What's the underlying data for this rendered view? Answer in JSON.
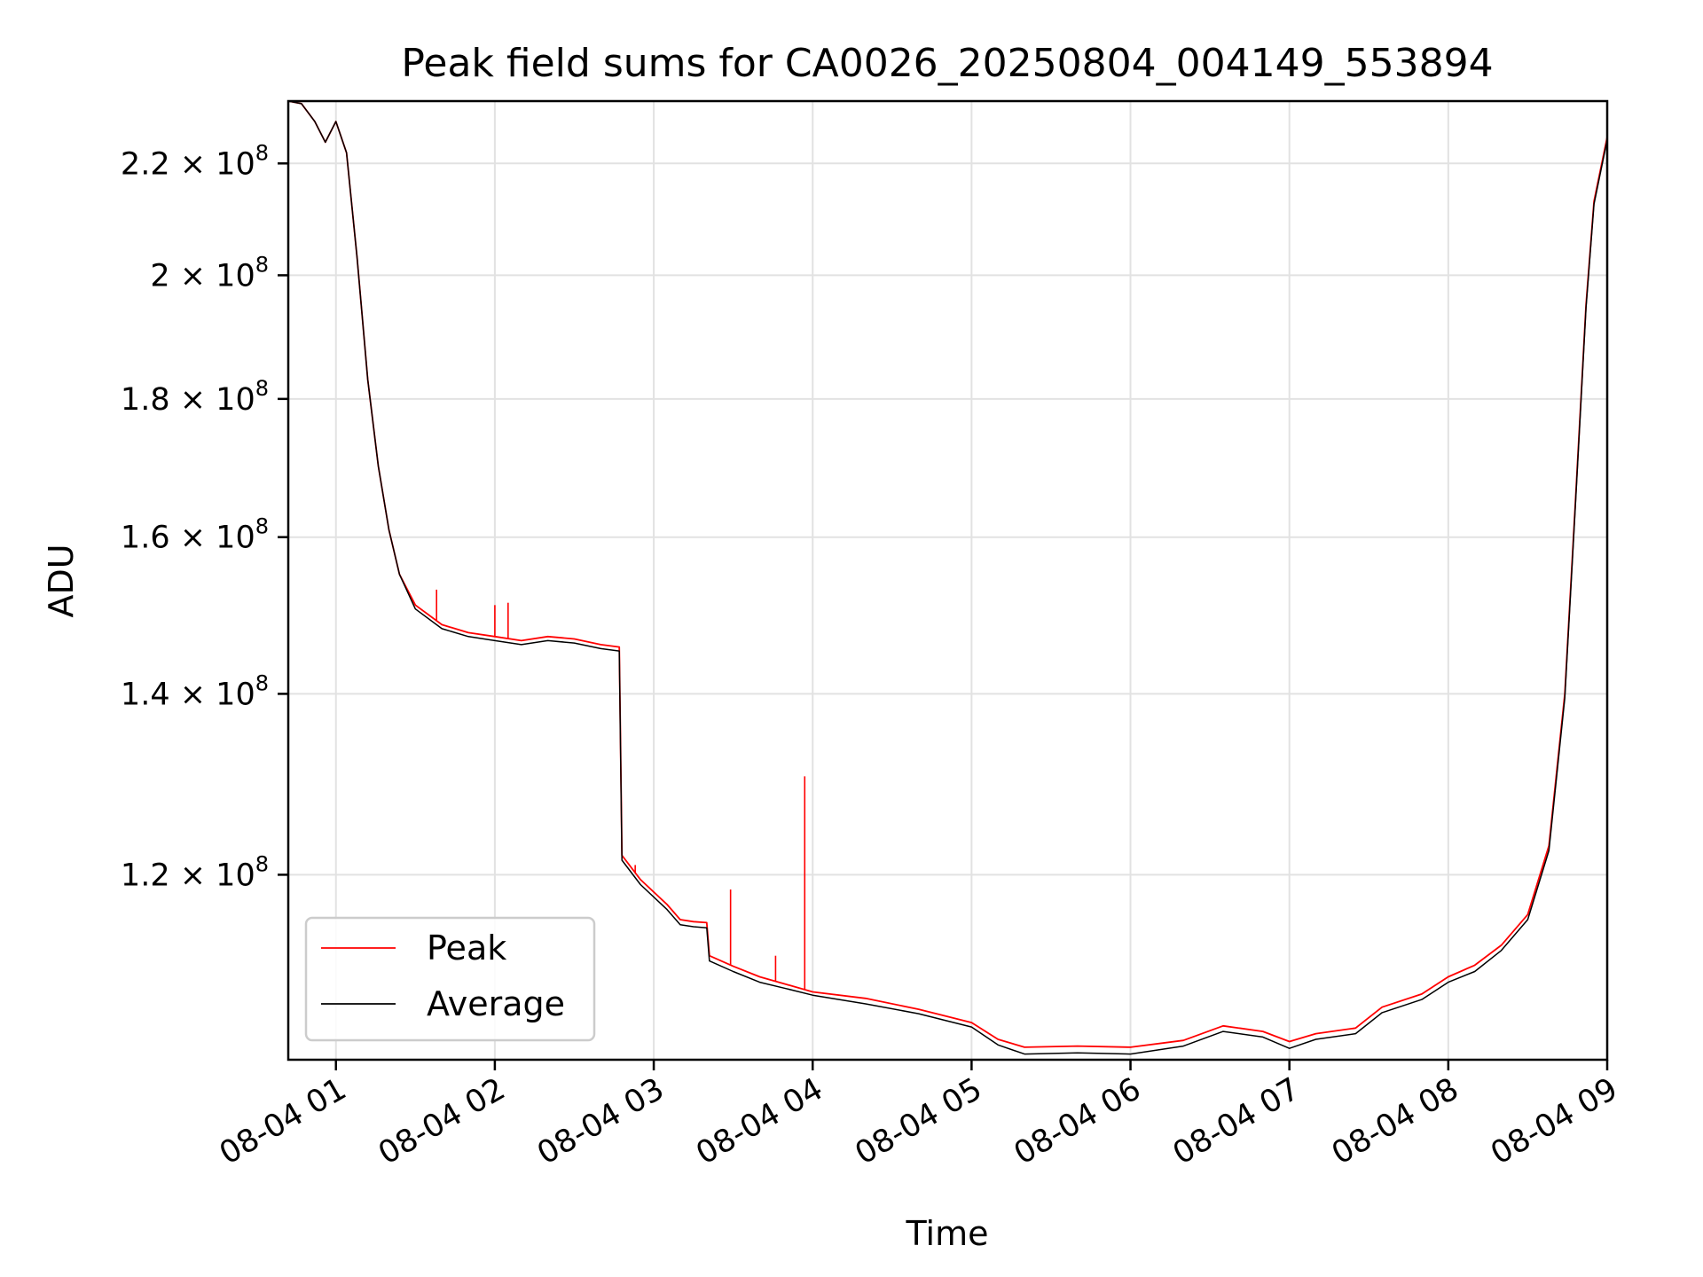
{
  "chart_data": {
    "type": "line",
    "title": "Peak field sums for CA0026_20250804_004149_553894",
    "xlabel": "Time",
    "ylabel": "ADU",
    "scale_y": "log",
    "grid": true,
    "legend_position": "lower-left",
    "xlim": [
      "2025-08-04 00:42",
      "2025-08-04 09:00"
    ],
    "ylim": [
      102500000,
      232000000
    ],
    "x_ticks": [
      {
        "value": "2025-08-04 01:00",
        "label": "08-04 01"
      },
      {
        "value": "2025-08-04 02:00",
        "label": "08-04 02"
      },
      {
        "value": "2025-08-04 03:00",
        "label": "08-04 03"
      },
      {
        "value": "2025-08-04 04:00",
        "label": "08-04 04"
      },
      {
        "value": "2025-08-04 05:00",
        "label": "08-04 05"
      },
      {
        "value": "2025-08-04 06:00",
        "label": "08-04 06"
      },
      {
        "value": "2025-08-04 07:00",
        "label": "08-04 07"
      },
      {
        "value": "2025-08-04 08:00",
        "label": "08-04 08"
      },
      {
        "value": "2025-08-04 09:00",
        "label": "08-04 09"
      }
    ],
    "y_ticks": [
      {
        "value": 120000000,
        "mantissa": "1.2",
        "exponent": "8"
      },
      {
        "value": 140000000,
        "mantissa": "1.4",
        "exponent": "8"
      },
      {
        "value": 160000000,
        "mantissa": "1.6",
        "exponent": "8"
      },
      {
        "value": 180000000,
        "mantissa": "1.8",
        "exponent": "8"
      },
      {
        "value": 200000000,
        "mantissa": "2",
        "exponent": "8"
      },
      {
        "value": 220000000,
        "mantissa": "2.2",
        "exponent": "8"
      }
    ],
    "series": [
      {
        "name": "Peak",
        "color": "#ff0000",
        "points": [
          [
            "2025-08-04 00:42",
            232000000
          ],
          [
            "2025-08-04 00:47",
            231500000
          ],
          [
            "2025-08-04 00:52",
            228000000
          ],
          [
            "2025-08-04 00:56",
            224000000
          ],
          [
            "2025-08-04 01:00",
            228000000
          ],
          [
            "2025-08-04 01:04",
            222000000
          ],
          [
            "2025-08-04 01:08",
            203000000
          ],
          [
            "2025-08-04 01:12",
            183000000
          ],
          [
            "2025-08-04 01:16",
            170000000
          ],
          [
            "2025-08-04 01:20",
            161000000
          ],
          [
            "2025-08-04 01:24",
            155000000
          ],
          [
            "2025-08-04 01:30",
            151000000
          ],
          [
            "2025-08-04 01:40",
            148500000
          ],
          [
            "2025-08-04 01:50",
            147500000
          ],
          [
            "2025-08-04 02:00",
            147000000
          ],
          [
            "2025-08-04 02:10",
            146500000
          ],
          [
            "2025-08-04 02:20",
            147000000
          ],
          [
            "2025-08-04 02:30",
            146700000
          ],
          [
            "2025-08-04 02:40",
            146000000
          ],
          [
            "2025-08-04 02:47",
            145700000
          ],
          [
            "2025-08-04 02:48",
            122000000
          ],
          [
            "2025-08-04 02:55",
            119500000
          ],
          [
            "2025-08-04 03:05",
            117000000
          ],
          [
            "2025-08-04 03:10",
            115500000
          ],
          [
            "2025-08-04 03:15",
            115300000
          ],
          [
            "2025-08-04 03:20",
            115200000
          ],
          [
            "2025-08-04 03:21",
            112000000
          ],
          [
            "2025-08-04 03:30",
            111000000
          ],
          [
            "2025-08-04 03:40",
            110000000
          ],
          [
            "2025-08-04 03:50",
            109300000
          ],
          [
            "2025-08-04 04:00",
            108600000
          ],
          [
            "2025-08-04 04:20",
            108000000
          ],
          [
            "2025-08-04 04:40",
            107000000
          ],
          [
            "2025-08-04 05:00",
            105800000
          ],
          [
            "2025-08-04 05:10",
            104300000
          ],
          [
            "2025-08-04 05:20",
            103600000
          ],
          [
            "2025-08-04 05:40",
            103700000
          ],
          [
            "2025-08-04 06:00",
            103600000
          ],
          [
            "2025-08-04 06:20",
            104200000
          ],
          [
            "2025-08-04 06:35",
            105500000
          ],
          [
            "2025-08-04 06:50",
            105000000
          ],
          [
            "2025-08-04 07:00",
            104100000
          ],
          [
            "2025-08-04 07:10",
            104800000
          ],
          [
            "2025-08-04 07:25",
            105300000
          ],
          [
            "2025-08-04 07:35",
            107200000
          ],
          [
            "2025-08-04 07:50",
            108400000
          ],
          [
            "2025-08-04 08:00",
            110000000
          ],
          [
            "2025-08-04 08:10",
            111100000
          ],
          [
            "2025-08-04 08:20",
            113000000
          ],
          [
            "2025-08-04 08:30",
            116000000
          ],
          [
            "2025-08-04 08:38",
            123000000
          ],
          [
            "2025-08-04 08:44",
            140000000
          ],
          [
            "2025-08-04 08:48",
            165000000
          ],
          [
            "2025-08-04 08:52",
            195000000
          ],
          [
            "2025-08-04 08:55",
            213000000
          ],
          [
            "2025-08-04 09:00",
            225000000
          ]
        ]
      },
      {
        "name": "Average",
        "color": "#000000",
        "points": [
          [
            "2025-08-04 00:42",
            232000000
          ],
          [
            "2025-08-04 00:47",
            231500000
          ],
          [
            "2025-08-04 00:52",
            228000000
          ],
          [
            "2025-08-04 00:56",
            224000000
          ],
          [
            "2025-08-04 01:00",
            228000000
          ],
          [
            "2025-08-04 01:04",
            222000000
          ],
          [
            "2025-08-04 01:08",
            203000000
          ],
          [
            "2025-08-04 01:12",
            183000000
          ],
          [
            "2025-08-04 01:16",
            170000000
          ],
          [
            "2025-08-04 01:20",
            161000000
          ],
          [
            "2025-08-04 01:24",
            155000000
          ],
          [
            "2025-08-04 01:30",
            150500000
          ],
          [
            "2025-08-04 01:40",
            148000000
          ],
          [
            "2025-08-04 01:50",
            147000000
          ],
          [
            "2025-08-04 02:00",
            146500000
          ],
          [
            "2025-08-04 02:10",
            146000000
          ],
          [
            "2025-08-04 02:20",
            146500000
          ],
          [
            "2025-08-04 02:30",
            146200000
          ],
          [
            "2025-08-04 02:40",
            145500000
          ],
          [
            "2025-08-04 02:47",
            145200000
          ],
          [
            "2025-08-04 02:48",
            121500000
          ],
          [
            "2025-08-04 02:55",
            119000000
          ],
          [
            "2025-08-04 03:05",
            116500000
          ],
          [
            "2025-08-04 03:10",
            115000000
          ],
          [
            "2025-08-04 03:15",
            114800000
          ],
          [
            "2025-08-04 03:20",
            114700000
          ],
          [
            "2025-08-04 03:21",
            111500000
          ],
          [
            "2025-08-04 03:30",
            110500000
          ],
          [
            "2025-08-04 03:40",
            109500000
          ],
          [
            "2025-08-04 03:50",
            108900000
          ],
          [
            "2025-08-04 04:00",
            108300000
          ],
          [
            "2025-08-04 04:20",
            107500000
          ],
          [
            "2025-08-04 04:40",
            106600000
          ],
          [
            "2025-08-04 05:00",
            105400000
          ],
          [
            "2025-08-04 05:10",
            103800000
          ],
          [
            "2025-08-04 05:20",
            103000000
          ],
          [
            "2025-08-04 05:40",
            103100000
          ],
          [
            "2025-08-04 06:00",
            103000000
          ],
          [
            "2025-08-04 06:20",
            103700000
          ],
          [
            "2025-08-04 06:35",
            105000000
          ],
          [
            "2025-08-04 06:50",
            104500000
          ],
          [
            "2025-08-04 07:00",
            103500000
          ],
          [
            "2025-08-04 07:10",
            104300000
          ],
          [
            "2025-08-04 07:25",
            104800000
          ],
          [
            "2025-08-04 07:35",
            106700000
          ],
          [
            "2025-08-04 07:50",
            107900000
          ],
          [
            "2025-08-04 08:00",
            109500000
          ],
          [
            "2025-08-04 08:10",
            110500000
          ],
          [
            "2025-08-04 08:20",
            112500000
          ],
          [
            "2025-08-04 08:30",
            115500000
          ],
          [
            "2025-08-04 08:38",
            122500000
          ],
          [
            "2025-08-04 08:44",
            139500000
          ],
          [
            "2025-08-04 08:48",
            164500000
          ],
          [
            "2025-08-04 08:52",
            194500000
          ],
          [
            "2025-08-04 08:55",
            212500000
          ],
          [
            "2025-08-04 09:00",
            224500000
          ]
        ]
      }
    ],
    "annotations": [
      {
        "series": "Peak",
        "x": "2025-08-04 01:38",
        "y": 153000000
      },
      {
        "series": "Peak",
        "x": "2025-08-04 02:00",
        "y": 151000000
      },
      {
        "series": "Peak",
        "x": "2025-08-04 02:05",
        "y": 151300000
      },
      {
        "series": "Peak",
        "x": "2025-08-04 02:53",
        "y": 121000000
      },
      {
        "series": "Peak",
        "x": "2025-08-04 03:29",
        "y": 118500000
      },
      {
        "series": "Peak",
        "x": "2025-08-04 03:57",
        "y": 130500000
      },
      {
        "series": "Peak",
        "x": "2025-08-04 03:46",
        "y": 112000000
      }
    ]
  }
}
